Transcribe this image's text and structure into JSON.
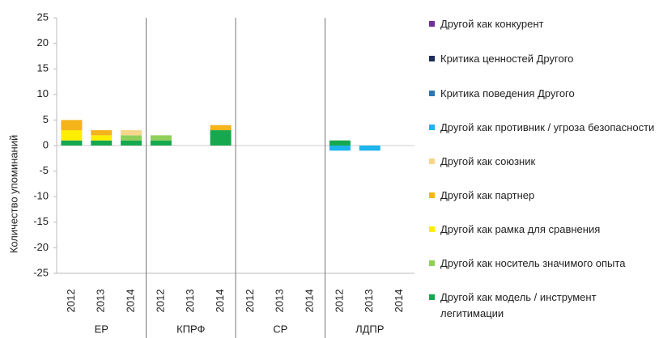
{
  "chart_data": {
    "type": "stacked-bar",
    "y_label": "Количество упоминаний",
    "categories": [
      "2012",
      "2013",
      "2014",
      "2012",
      "2013",
      "2014",
      "2012",
      "2013",
      "2014",
      "2012",
      "2013",
      "2014"
    ],
    "groups": [
      "ЕР",
      "КПРФ",
      "СР",
      "ЛДПР"
    ],
    "ylim": [
      -25,
      25
    ],
    "yticks": [
      25,
      20,
      15,
      10,
      5,
      0,
      -5,
      -10,
      -15,
      -20,
      -25
    ],
    "series": [
      {
        "name": "Другой как конкурент",
        "color": "#7030a0",
        "values": [
          null,
          null,
          null,
          null,
          null,
          null,
          null,
          null,
          null,
          null,
          null,
          null
        ]
      },
      {
        "name": "Критика ценностей Другого",
        "color": "#1f2d5a",
        "values": [
          null,
          null,
          null,
          null,
          null,
          null,
          null,
          null,
          null,
          null,
          null,
          null
        ]
      },
      {
        "name": "Критика поведения Другого",
        "color": "#2e75b6",
        "values": [
          null,
          null,
          null,
          null,
          null,
          null,
          null,
          null,
          null,
          null,
          null,
          null
        ]
      },
      {
        "name": "Другой как противник / угроза безопасности",
        "color": "#1cb5ee",
        "values": [
          null,
          null,
          null,
          null,
          null,
          null,
          null,
          null,
          null,
          -1,
          -1,
          null
        ]
      },
      {
        "name": "Другой как союзник",
        "color": "#f5d68c",
        "values": [
          null,
          null,
          1,
          null,
          null,
          null,
          null,
          null,
          null,
          null,
          null,
          null
        ]
      },
      {
        "name": "Другой как партнер",
        "color": "#f4b41a",
        "values": [
          2,
          1,
          null,
          null,
          null,
          1,
          null,
          null,
          null,
          null,
          null,
          null
        ]
      },
      {
        "name": "Другой как рамка для сравнения",
        "color": "#ffee00",
        "values": [
          2,
          1,
          null,
          null,
          null,
          null,
          null,
          null,
          null,
          null,
          null,
          null
        ]
      },
      {
        "name": "Другой как носитель значимого опыта",
        "color": "#8fcf5a",
        "values": [
          null,
          null,
          1,
          1,
          null,
          null,
          null,
          null,
          null,
          null,
          null,
          null
        ]
      },
      {
        "name": "Другой как модель / инструмент легитимации",
        "color": "#16a84e",
        "values": [
          1,
          1,
          1,
          1,
          null,
          3,
          null,
          null,
          null,
          1,
          null,
          null
        ]
      }
    ]
  }
}
